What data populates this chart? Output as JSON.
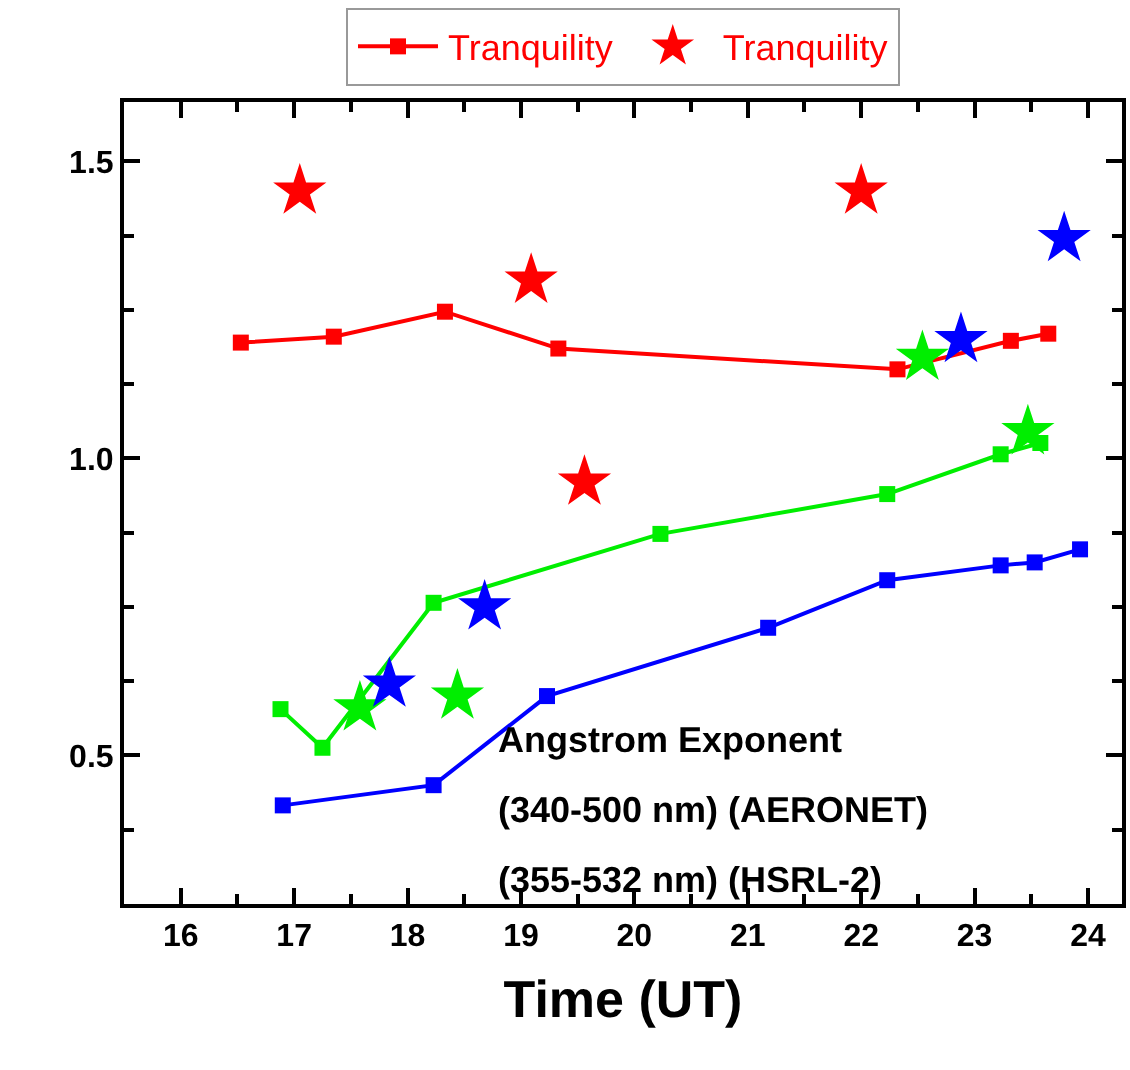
{
  "chart_data": {
    "type": "line",
    "xlabel": "Time (UT)",
    "xlim": [
      15.5,
      24.3
    ],
    "xticks": [
      16,
      17,
      18,
      19,
      20,
      21,
      22,
      23,
      24
    ],
    "ylim": [
      0.25,
      1.6
    ],
    "yticks": [
      {
        "value": 0.5,
        "label": "0.5"
      },
      {
        "value": 1.0,
        "label": "1.0"
      },
      {
        "value": 1.5,
        "label": "1.5"
      }
    ],
    "grid": false,
    "legend": "top",
    "annotations": [
      "Angstrom Exponent",
      "(340-500 nm) (AERONET)",
      "(355-532 nm) (HSRL-2)"
    ],
    "series": [
      {
        "name": "Tranquility",
        "marker": "square",
        "color": "#ff0000",
        "x": [
          16.53,
          17.35,
          18.33,
          19.33,
          22.32,
          23.32,
          23.65
        ],
        "values": [
          1.195,
          1.205,
          1.247,
          1.185,
          1.15,
          1.198,
          1.21
        ]
      },
      {
        "marker": "square",
        "color": "#00ee00",
        "x": [
          16.88,
          17.25,
          18.23,
          20.23,
          22.23,
          23.23,
          23.58
        ],
        "values": [
          0.578,
          0.513,
          0.757,
          0.873,
          0.94,
          1.007,
          1.026
        ]
      },
      {
        "marker": "square",
        "color": "#0000ff",
        "x": [
          16.9,
          18.23,
          19.23,
          21.18,
          22.23,
          23.23,
          23.53,
          23.93
        ],
        "values": [
          0.416,
          0.45,
          0.6,
          0.715,
          0.795,
          0.82,
          0.825,
          0.847
        ]
      },
      {
        "name": "Tranquility",
        "type": "scatter",
        "marker": "star",
        "color": "#ff0000",
        "x": [
          17.05,
          19.09,
          19.56,
          22.0
        ],
        "values": [
          1.45,
          1.3,
          0.96,
          1.45
        ]
      },
      {
        "type": "scatter",
        "marker": "star",
        "color": "#00ee00",
        "x": [
          17.58,
          18.44,
          22.54,
          23.47
        ],
        "values": [
          0.58,
          0.6,
          1.17,
          1.045
        ]
      },
      {
        "type": "scatter",
        "marker": "star",
        "color": "#0000ff",
        "x": [
          17.84,
          18.68,
          22.88,
          23.79
        ],
        "values": [
          0.62,
          0.75,
          1.2,
          1.37
        ]
      }
    ]
  }
}
